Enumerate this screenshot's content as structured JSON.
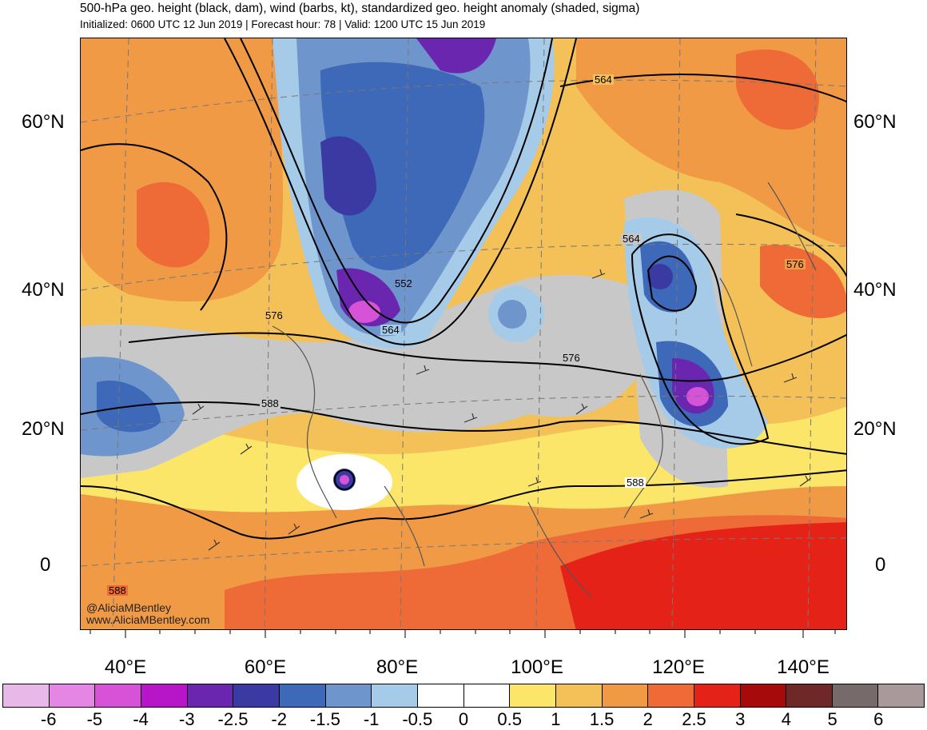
{
  "header": {
    "title": "500-hPa geo. height (black, dam), wind (barbs, kt), standardized geo. height anomaly (shaded, sigma)",
    "subtitle": "Initialized: 0600 UTC 12 Jun 2019 | Forecast hour: 78 | Valid: 1200 UTC 15 Jun 2019"
  },
  "axes": {
    "lat_left": [
      "60°N",
      "40°N",
      "20°N",
      "0"
    ],
    "lat_right": [
      "60°N",
      "40°N",
      "20°N",
      "0"
    ],
    "lon": [
      "40°E",
      "60°E",
      "80°E",
      "100°E",
      "120°E",
      "140°E"
    ]
  },
  "contour_labels": [
    "564",
    "552",
    "564",
    "576",
    "576",
    "564",
    "576",
    "588",
    "588",
    "588"
  ],
  "credit": {
    "handle": "@AliciaMBentley",
    "site": "www.AliciaMBentley.com"
  },
  "colorbar": {
    "colors": [
      "#e8b8e8",
      "#e486e4",
      "#d652d6",
      "#b616c8",
      "#6b26b0",
      "#3a3aa2",
      "#3e68b8",
      "#6f96cc",
      "#a6cbe8",
      "#ffffff",
      "#ffffff",
      "#fbe66a",
      "#f4c058",
      "#f19a46",
      "#ee6a36",
      "#e42218",
      "#a60a0a",
      "#6e2828",
      "#766a6a",
      "#a89a9a"
    ],
    "labels": [
      "-6",
      "-5",
      "-4",
      "-3",
      "-2.5",
      "-2",
      "-1.5",
      "-1",
      "-0.5",
      "0",
      "0.5",
      "1",
      "1.5",
      "2",
      "2.5",
      "3",
      "4",
      "5",
      "6"
    ]
  }
}
